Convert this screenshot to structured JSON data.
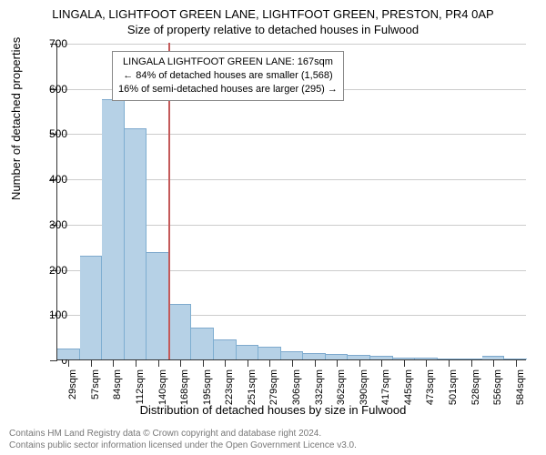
{
  "chart": {
    "type": "histogram",
    "title_main": "LINGALA, LIGHTFOOT GREEN LANE, LIGHTFOOT GREEN, PRESTON, PR4 0AP",
    "title_sub": "Size of property relative to detached houses in Fulwood",
    "y_axis_title": "Number of detached properties",
    "x_axis_title": "Distribution of detached houses by size in Fulwood",
    "ylim": [
      0,
      700
    ],
    "ytick_step": 100,
    "y_ticks": [
      0,
      100,
      200,
      300,
      400,
      500,
      600,
      700
    ],
    "x_labels": [
      "29sqm",
      "57sqm",
      "84sqm",
      "112sqm",
      "140sqm",
      "168sqm",
      "195sqm",
      "223sqm",
      "251sqm",
      "279sqm",
      "306sqm",
      "332sqm",
      "362sqm",
      "390sqm",
      "417sqm",
      "445sqm",
      "473sqm",
      "501sqm",
      "528sqm",
      "556sqm",
      "584sqm"
    ],
    "values": [
      25,
      230,
      575,
      510,
      237,
      122,
      70,
      45,
      33,
      28,
      18,
      15,
      12,
      10,
      8,
      5,
      4,
      2,
      3,
      8,
      2
    ],
    "marker_index": 5,
    "marker_color": "#c45a5a",
    "bar_color": "#b6d1e6",
    "bar_border": "#7eaed1",
    "grid_color": "#cccccc",
    "axis_color": "#333333",
    "background_color": "#ffffff",
    "title_fontsize": 13,
    "label_fontsize": 13,
    "tick_fontsize": 12,
    "xlabel_fontsize": 11,
    "annotation": {
      "line1": "LINGALA LIGHTFOOT GREEN LANE: 167sqm",
      "line2": "← 84% of detached houses are smaller (1,568)",
      "line3": "16% of semi-detached houses are larger (295) →",
      "border_color": "#888888",
      "fontsize": 11
    },
    "footer": {
      "line1": "Contains HM Land Registry data © Crown copyright and database right 2024.",
      "line2": "Contains public sector information licensed under the Open Government Licence v3.0.",
      "color": "#777777",
      "fontsize": 10
    }
  }
}
